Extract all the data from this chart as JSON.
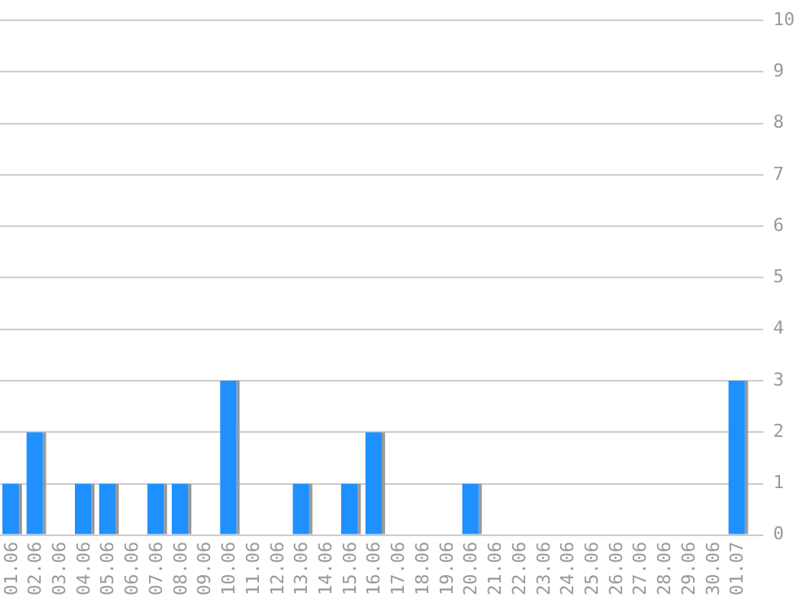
{
  "chart_data": {
    "type": "bar",
    "categories": [
      "01.06",
      "02.06",
      "03.06",
      "04.06",
      "05.06",
      "06.06",
      "07.06",
      "08.06",
      "09.06",
      "10.06",
      "11.06",
      "12.06",
      "13.06",
      "14.06",
      "15.06",
      "16.06",
      "17.06",
      "18.06",
      "19.06",
      "20.06",
      "21.06",
      "22.06",
      "23.06",
      "24.06",
      "25.06",
      "26.06",
      "27.06",
      "28.06",
      "29.06",
      "30.06",
      "01.07"
    ],
    "values": [
      1,
      2,
      0,
      1,
      1,
      0,
      1,
      1,
      0,
      3,
      0,
      0,
      1,
      0,
      1,
      2,
      0,
      0,
      0,
      1,
      0,
      0,
      0,
      0,
      0,
      0,
      0,
      0,
      0,
      0,
      3
    ],
    "color": "#1e90ff",
    "ylim": [
      0,
      10
    ],
    "yticks": [
      0,
      1,
      2,
      3,
      4,
      5,
      6,
      7,
      8,
      9,
      10
    ],
    "grid": "y",
    "legend": false
  }
}
